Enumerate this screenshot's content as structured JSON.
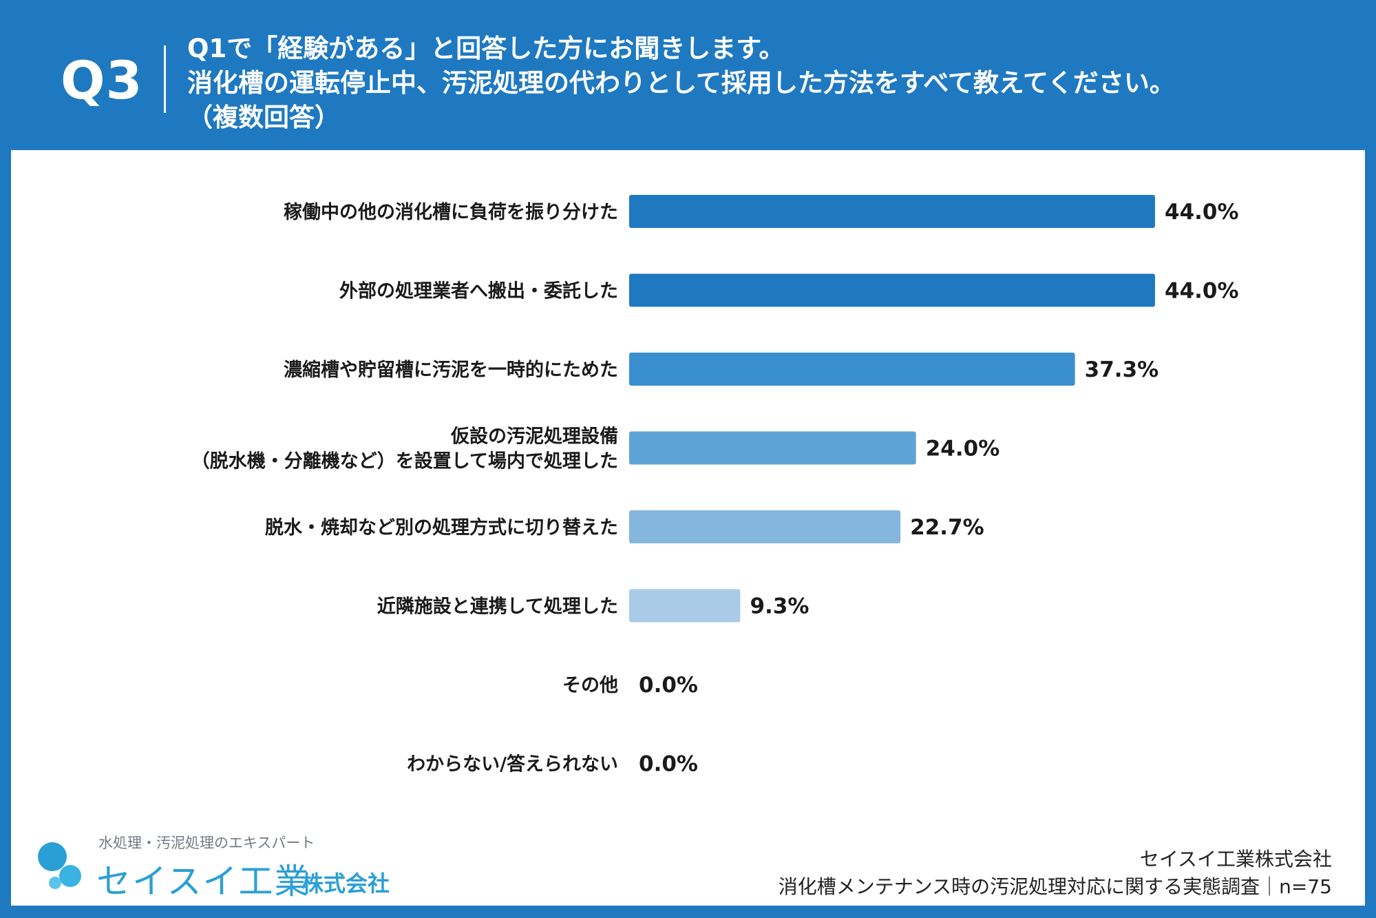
{
  "header": {
    "q_label": "Q3",
    "question_lines": [
      "Q1で「経験がある」と回答した方にお聞きします。",
      "消化槽の運転停止中、汚泥処理の代わりとして採用した方法をすべて教えてください。",
      "（複数回答）"
    ]
  },
  "colors": {
    "header_bg": "#1f79c1",
    "bar_shades": [
      "#1f79c1",
      "#1f79c1",
      "#3a8fcf",
      "#5ea3d6",
      "#84b6de",
      "#a9cbe8",
      "#a9cbe8",
      "#a9cbe8"
    ]
  },
  "chart_data": {
    "type": "bar",
    "orientation": "horizontal",
    "title": "",
    "xlabel": "",
    "ylabel": "",
    "xlim": [
      0,
      44
    ],
    "grid": false,
    "categories": [
      [
        "稼働中の他の消化槽に負荷を振り分けた"
      ],
      [
        "外部の処理業者へ搬出・委託した"
      ],
      [
        "濃縮槽や貯留槽に汚泥を一時的にためた"
      ],
      [
        "仮設の汚泥処理設備",
        "（脱水機・分離機など）を設置して場内で処理した"
      ],
      [
        "脱水・焼却など別の処理方式に切り替えた"
      ],
      [
        "近隣施設と連携して処理した"
      ],
      [
        "その他"
      ],
      [
        "わからない/答えられない"
      ]
    ],
    "values": [
      44.0,
      44.0,
      37.3,
      24.0,
      22.7,
      9.3,
      0.0,
      0.0
    ],
    "value_labels": [
      "44.0%",
      "44.0%",
      "37.3%",
      "24.0%",
      "22.7%",
      "9.3%",
      "0.0%",
      "0.0%"
    ]
  },
  "logo": {
    "tagline": "水処理・汚泥処理のエキスパート",
    "name": "セイスイ工業",
    "suffix": "株式会社"
  },
  "footer": {
    "company": "セイスイ工業株式会社",
    "survey": "消化槽メンテナンス時の汚泥処理対応に関する実態調査｜n=75"
  }
}
